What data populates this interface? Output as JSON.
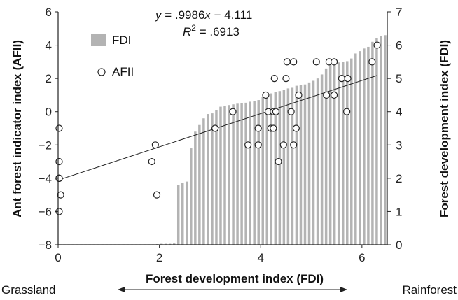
{
  "chart_data": {
    "type": "bar+scatter",
    "title": "",
    "xlabel": "Forest development index (FDI)",
    "ylabel_left": "Ant forest indicator index (AFII)",
    "ylabel_right": "Forest development index (FDI)",
    "xlim": [
      0,
      6.5
    ],
    "ylim_left": [
      -8,
      6
    ],
    "ylim_right": [
      0,
      7
    ],
    "x_ticks": [
      "0",
      "2",
      "4",
      "6"
    ],
    "y_left_ticks": [
      "−8",
      "−6",
      "−4",
      "−2",
      "0",
      "2",
      "4",
      "6"
    ],
    "y_right_ticks": [
      "0",
      "1",
      "2",
      "3",
      "4",
      "5",
      "6",
      "7"
    ],
    "equation_lhs": "y",
    "equation_rhs": " = .9986",
    "equation_var": "x",
    "equation_tail": " − 4.111",
    "r2_label": "R",
    "r2_sup": "2",
    "r2_value": " = .6913",
    "regression": {
      "slope": 0.9986,
      "intercept": -4.111
    },
    "grassland_label": "Grassland",
    "rainforest_label": "Rainforest",
    "colors": {
      "bars": "#b3b3b3",
      "points": "#222222",
      "line": "#222222"
    },
    "series": [
      {
        "name": "FDI",
        "kind": "bar",
        "axis": "right",
        "values": [
          0,
          0,
          0,
          0,
          0,
          0,
          0,
          0,
          0,
          0,
          0,
          0,
          0,
          0,
          0,
          0,
          0,
          0,
          0,
          0,
          0,
          0,
          0,
          0.02,
          0.03,
          0.03,
          0.03,
          0.04,
          1.8,
          1.85,
          1.9,
          2.9,
          3.4,
          3.6,
          3.8,
          3.93,
          3.95,
          4.05,
          4.15,
          4.18,
          4.2,
          4.22,
          4.24,
          4.25,
          4.27,
          4.3,
          4.32,
          4.35,
          4.45,
          4.52,
          4.55,
          4.6,
          4.62,
          4.65,
          4.7,
          4.72,
          4.78,
          4.8,
          4.82,
          4.88,
          4.93,
          5.0,
          5.12,
          5.3,
          5.4,
          5.45,
          5.48,
          5.5,
          5.52,
          5.6,
          5.75,
          5.82,
          5.9,
          5.95,
          6.1,
          6.22,
          6.28,
          6.3
        ]
      },
      {
        "name": "AFII",
        "kind": "scatter",
        "axis": "left",
        "points": [
          [
            0.02,
            -1
          ],
          [
            0.02,
            -3
          ],
          [
            0.02,
            -3
          ],
          [
            0.02,
            -4
          ],
          [
            0.02,
            -4
          ],
          [
            0.02,
            -4
          ],
          [
            0.02,
            -4
          ],
          [
            0.02,
            -4
          ],
          [
            0.02,
            -6
          ],
          [
            0.05,
            -5
          ],
          [
            1.85,
            -3
          ],
          [
            1.92,
            -2
          ],
          [
            1.95,
            -5
          ],
          [
            3.1,
            -1
          ],
          [
            3.45,
            0
          ],
          [
            3.75,
            -2
          ],
          [
            3.95,
            -2
          ],
          [
            3.95,
            -1
          ],
          [
            4.1,
            1
          ],
          [
            4.15,
            0
          ],
          [
            4.2,
            -1
          ],
          [
            4.25,
            -1
          ],
          [
            4.25,
            0
          ],
          [
            4.27,
            2
          ],
          [
            4.3,
            0
          ],
          [
            4.35,
            -3
          ],
          [
            4.45,
            -2
          ],
          [
            4.5,
            2
          ],
          [
            4.52,
            3
          ],
          [
            4.6,
            0
          ],
          [
            4.65,
            3
          ],
          [
            4.65,
            -2
          ],
          [
            4.7,
            -1
          ],
          [
            4.75,
            1
          ],
          [
            5.1,
            3
          ],
          [
            5.3,
            1
          ],
          [
            5.35,
            3
          ],
          [
            5.45,
            1
          ],
          [
            5.45,
            3
          ],
          [
            5.6,
            2
          ],
          [
            5.7,
            0
          ],
          [
            5.72,
            2
          ],
          [
            6.2,
            3
          ],
          [
            6.3,
            4
          ]
        ]
      }
    ],
    "legend": {
      "position": "top-left",
      "items": [
        "FDI",
        "AFII"
      ]
    },
    "grid": false
  }
}
